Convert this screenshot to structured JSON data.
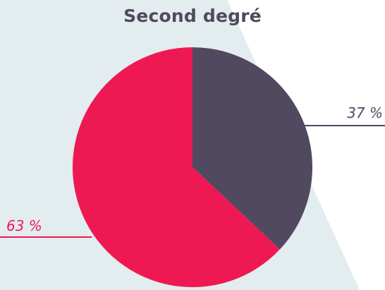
{
  "colors": {
    "background_tint": "#e3ecee",
    "background": "#ffffff"
  },
  "chart_data": {
    "type": "pie",
    "title": "Second degré",
    "slices": [
      {
        "value": 37,
        "label": "37 %",
        "color": "#504960"
      },
      {
        "value": 63,
        "label": "63 %",
        "color": "#ee1953"
      }
    ]
  }
}
